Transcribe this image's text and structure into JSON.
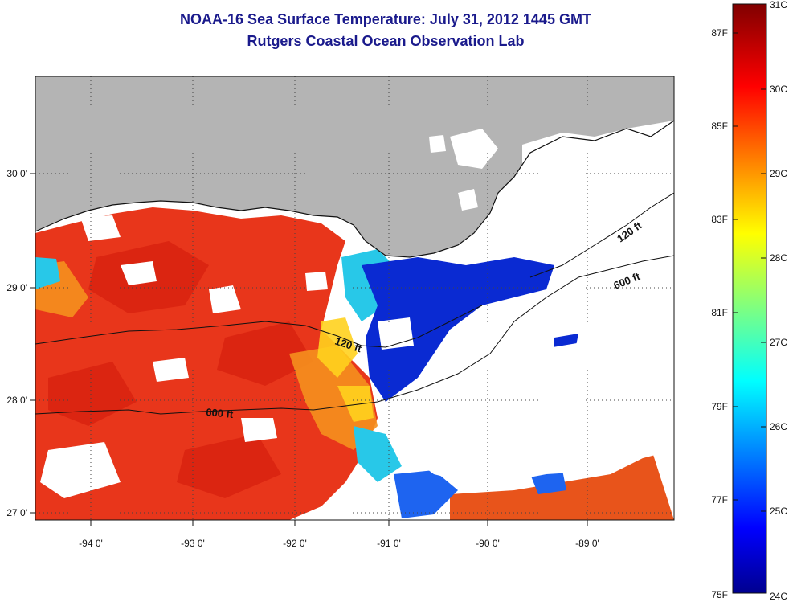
{
  "title": "NOAA-16 Sea Surface Temperature:  July 31, 2012 1445 GMT",
  "subtitle": "Rutgers Coastal Ocean Observation Lab",
  "map": {
    "lon_range": [
      -94.5,
      -88.25
    ],
    "lat_range": [
      26.95,
      30.85
    ],
    "lon_ticks": [
      "-94 0'",
      "-93 0'",
      "-92 0'",
      "-91 0'",
      "-90 0'",
      "-89 0'"
    ],
    "lat_ticks": [
      "30 0'",
      "29 0'",
      "28 0'",
      "27 0'"
    ],
    "grid": "dotted",
    "contours": [
      {
        "label": "120 ft"
      },
      {
        "label": "600 ft"
      },
      {
        "label": "120 ft"
      },
      {
        "label": "600 ft"
      }
    ],
    "colors": {
      "land": "#b4b4b4",
      "cloud": "#ffffff"
    }
  },
  "colorbar": {
    "celsius_labels": [
      "31C",
      "30C",
      "29C",
      "28C",
      "27C",
      "26C",
      "25C",
      "24C"
    ],
    "fahrenheit_labels": [
      "87F",
      "85F",
      "83F",
      "81F",
      "79F",
      "77F",
      "75F"
    ],
    "range_c": [
      24,
      31
    ],
    "colormap": "jet"
  }
}
